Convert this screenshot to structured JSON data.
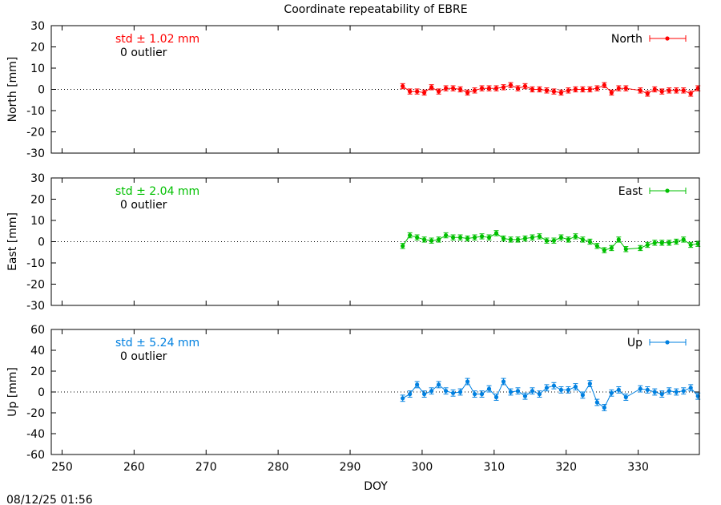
{
  "title": "Coordinate repeatability of EBRE",
  "xlabel": "DOY",
  "timestamp": "08/12/25 01:56",
  "chart_data": [
    {
      "type": "line",
      "component": "north",
      "ylabel": "North [mm]",
      "legend": "North",
      "legend_position": "top-right",
      "color": "#ff0000",
      "std_text": "std ± 1.02 mm",
      "outlier_text": "0 outlier",
      "xlim": [
        248.5,
        338.5
      ],
      "ylim": [
        -30,
        30
      ],
      "xticks": [
        250,
        260,
        270,
        280,
        290,
        300,
        310,
        320,
        330
      ],
      "yticks": [
        -30,
        -20,
        -10,
        0,
        10,
        20,
        30
      ],
      "x": [
        297.3,
        298.3,
        299.3,
        300.3,
        301.3,
        302.3,
        303.3,
        304.3,
        305.3,
        306.3,
        307.3,
        308.3,
        309.3,
        310.3,
        311.3,
        312.3,
        313.3,
        314.3,
        315.3,
        316.3,
        317.3,
        318.3,
        319.3,
        320.3,
        321.3,
        322.3,
        323.3,
        324.3,
        325.3,
        326.3,
        327.3,
        328.3,
        330.3,
        331.3,
        332.3,
        333.3,
        334.3,
        335.3,
        336.3,
        337.3,
        338.3
      ],
      "y": [
        1.5,
        -1,
        -1,
        -1.5,
        1,
        -1,
        0.5,
        0.5,
        0,
        -1.5,
        -0.5,
        0.5,
        0.5,
        0.5,
        1,
        2,
        0.5,
        1.5,
        0,
        0,
        -0.5,
        -1,
        -1.5,
        -0.5,
        0,
        0,
        0,
        0.5,
        2,
        -1.5,
        0.5,
        0.5,
        -0.5,
        -2,
        0,
        -1,
        -0.5,
        -0.5,
        -0.5,
        -2,
        0.5
      ],
      "err": 1.2
    },
    {
      "type": "line",
      "component": "east",
      "ylabel": "East [mm]",
      "legend": "East",
      "legend_position": "top-right",
      "color": "#00c000",
      "std_text": "std ± 2.04 mm",
      "outlier_text": "0 outlier",
      "xlim": [
        248.5,
        338.5
      ],
      "ylim": [
        -30,
        30
      ],
      "xticks": [
        250,
        260,
        270,
        280,
        290,
        300,
        310,
        320,
        330
      ],
      "yticks": [
        -30,
        -20,
        -10,
        0,
        10,
        20,
        30
      ],
      "x": [
        297.3,
        298.3,
        299.3,
        300.3,
        301.3,
        302.3,
        303.3,
        304.3,
        305.3,
        306.3,
        307.3,
        308.3,
        309.3,
        310.3,
        311.3,
        312.3,
        313.3,
        314.3,
        315.3,
        316.3,
        317.3,
        318.3,
        319.3,
        320.3,
        321.3,
        322.3,
        323.3,
        324.3,
        325.3,
        326.3,
        327.3,
        328.3,
        330.3,
        331.3,
        332.3,
        333.3,
        334.3,
        335.3,
        336.3,
        337.3,
        338.3
      ],
      "y": [
        -2,
        3,
        2,
        1,
        0.5,
        1,
        3,
        2,
        2,
        1.5,
        2,
        2.5,
        2,
        4,
        1.5,
        1,
        1,
        1.5,
        2,
        2.5,
        0.5,
        0.5,
        2,
        1,
        2.5,
        1,
        0,
        -2,
        -4,
        -3,
        1,
        -3.5,
        -3,
        -1.5,
        -0.5,
        -0.5,
        -0.5,
        0,
        1,
        -1.5,
        -1
      ],
      "err": 1.2
    },
    {
      "type": "line",
      "component": "up",
      "ylabel": "Up [mm]",
      "legend": "Up",
      "legend_position": "top-right",
      "color": "#0080e0",
      "std_text": "std ± 5.24 mm",
      "outlier_text": "0 outlier",
      "xlim": [
        248.5,
        338.5
      ],
      "ylim": [
        -60,
        60
      ],
      "xticks": [
        250,
        260,
        270,
        280,
        290,
        300,
        310,
        320,
        330
      ],
      "yticks": [
        -60,
        -40,
        -20,
        0,
        20,
        40,
        60
      ],
      "x": [
        297.3,
        298.3,
        299.3,
        300.3,
        301.3,
        302.3,
        303.3,
        304.3,
        305.3,
        306.3,
        307.3,
        308.3,
        309.3,
        310.3,
        311.3,
        312.3,
        313.3,
        314.3,
        315.3,
        316.3,
        317.3,
        318.3,
        319.3,
        320.3,
        321.3,
        322.3,
        323.3,
        324.3,
        325.3,
        326.3,
        327.3,
        328.3,
        330.3,
        331.3,
        332.3,
        333.3,
        334.3,
        335.3,
        336.3,
        337.3,
        338.3
      ],
      "y": [
        -6,
        -2,
        7,
        -2,
        1,
        7,
        1,
        -1,
        0,
        10,
        -2,
        -2,
        3,
        -5,
        10,
        0,
        1,
        -4,
        1,
        -2,
        4,
        6,
        2,
        2,
        5,
        -3,
        8,
        -10,
        -15,
        -1,
        2,
        -5,
        3,
        2,
        0,
        -2,
        1,
        0,
        1,
        4,
        -4
      ],
      "err": 3
    }
  ]
}
